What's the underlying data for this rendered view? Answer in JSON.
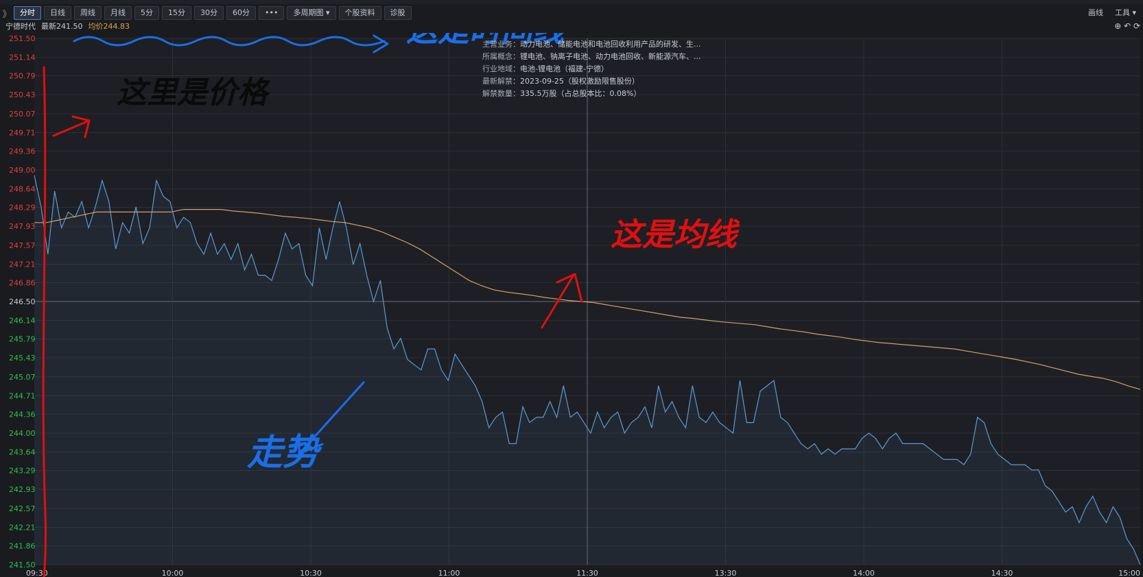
{
  "toolbar": {
    "collapse": "》",
    "tabs": [
      "分时",
      "日线",
      "周线",
      "月线",
      "5分",
      "15分",
      "30分",
      "60分",
      "•••",
      "多周期图 ▾",
      "个股资料",
      "诊股"
    ],
    "active_index": 0,
    "draw_label": "画线",
    "tools_label": "工具 ▾"
  },
  "infobar": {
    "name": "宁德时代",
    "last": "最新241.50",
    "avg": "均价244.83",
    "icons": "⊕ ↶ ⟳"
  },
  "info_panel": [
    {
      "k": "主营业务：",
      "v": "动力电池、储能电池和电池回收利用产品的研发、生..."
    },
    {
      "k": "所属概念：",
      "v": "锂电池、钠离子电池、动力电池回收、新能源汽车、..."
    },
    {
      "k": "行业地域：",
      "v": "电池-锂电池（福建-宁德）"
    },
    {
      "k": "最新解禁：",
      "v": "2023-09-25（股权激励限售股份）"
    },
    {
      "k": "解禁数量：",
      "v": "335.5万股（占总股本比：0.08%）"
    }
  ],
  "annotations": {
    "price": "这里是价格",
    "time": "这是时间线",
    "avg": "这是均线",
    "trend": "走势"
  },
  "colors": {
    "price_line": "#5b9bd5",
    "avg_line": "#d9a066",
    "up": "#e04040",
    "down": "#30c050",
    "red_ink": "#e01010",
    "blue_ink": "#1a6ee8",
    "black_ink": "#0a0a0a"
  },
  "chart_data": {
    "type": "line",
    "prev_close": 246.5,
    "ylim": [
      241.5,
      251.5
    ],
    "yticks": [
      "251.50",
      "251.14",
      "250.79",
      "250.43",
      "250.07",
      "249.71",
      "249.36",
      "249.00",
      "248.64",
      "248.29",
      "247.93",
      "247.57",
      "247.21",
      "246.86",
      "246.50",
      "246.14",
      "245.79",
      "245.43",
      "245.07",
      "244.71",
      "244.36",
      "244.00",
      "243.64",
      "243.29",
      "242.93",
      "242.57",
      "242.21",
      "241.86",
      "241.50"
    ],
    "xticks": [
      "09:30",
      "10:00",
      "10:30",
      "11:00",
      "11:30",
      "13:30",
      "14:00",
      "14:30",
      "15:00"
    ],
    "series": [
      {
        "name": "最新",
        "values": [
          248.9,
          248.3,
          247.4,
          248.6,
          247.9,
          248.2,
          248.1,
          248.4,
          247.9,
          248.3,
          248.8,
          248.4,
          247.5,
          248.0,
          247.8,
          248.3,
          247.6,
          247.9,
          248.8,
          248.5,
          248.4,
          247.9,
          248.1,
          248.0,
          247.6,
          247.4,
          247.8,
          247.4,
          247.6,
          247.3,
          247.6,
          247.1,
          247.4,
          247.0,
          247.0,
          246.9,
          247.3,
          247.8,
          247.5,
          247.6,
          247.0,
          246.8,
          247.9,
          247.3,
          247.9,
          248.4,
          247.9,
          247.2,
          247.6,
          247.0,
          246.5,
          246.9,
          246.0,
          245.6,
          245.8,
          245.4,
          245.3,
          245.2,
          245.6,
          245.6,
          245.2,
          245.0,
          245.5,
          245.3,
          245.1,
          244.9,
          244.6,
          244.1,
          244.3,
          244.4,
          243.8,
          243.8,
          244.5,
          244.2,
          244.3,
          244.3,
          244.6,
          244.3,
          244.9,
          244.3,
          244.4,
          244.2,
          244.0,
          244.4,
          244.1,
          244.3,
          244.4,
          244.0,
          244.2,
          244.3,
          244.5,
          244.1,
          244.9,
          244.4,
          244.6,
          244.3,
          244.1,
          244.9,
          244.3,
          244.2,
          244.4,
          244.2,
          244.1,
          244.0,
          245.0,
          244.2,
          244.2,
          244.8,
          244.9,
          245.0,
          244.3,
          244.2,
          244.0,
          243.8,
          243.7,
          243.8,
          243.6,
          243.7,
          243.6,
          243.7,
          243.7,
          243.7,
          243.9,
          244.0,
          243.9,
          243.7,
          243.9,
          244.0,
          243.8,
          243.8,
          243.8,
          243.8,
          243.7,
          243.6,
          243.5,
          243.5,
          243.5,
          243.4,
          243.6,
          244.3,
          244.2,
          243.8,
          243.6,
          243.5,
          243.4,
          243.4,
          243.4,
          243.3,
          243.3,
          243.0,
          242.9,
          242.7,
          242.5,
          242.6,
          242.3,
          242.6,
          242.8,
          242.5,
          242.3,
          242.6,
          242.4,
          242.0,
          241.8,
          241.5
        ]
      },
      {
        "name": "均价",
        "values": [
          248.0,
          248.0,
          248.05,
          248.1,
          248.15,
          248.2,
          248.2,
          248.2,
          248.2,
          248.2,
          248.2,
          248.2,
          248.25,
          248.25,
          248.25,
          248.25,
          248.22,
          248.2,
          248.18,
          248.15,
          248.12,
          248.1,
          248.08,
          248.05,
          248.02,
          248.0,
          247.95,
          247.9,
          247.82,
          247.72,
          247.62,
          247.5,
          247.35,
          247.2,
          247.05,
          246.9,
          246.8,
          246.72,
          246.68,
          246.65,
          246.62,
          246.58,
          246.55,
          246.52,
          246.5,
          246.48,
          246.44,
          246.4,
          246.36,
          246.32,
          246.28,
          246.24,
          246.2,
          246.18,
          246.15,
          246.12,
          246.1,
          246.08,
          246.06,
          246.02,
          245.98,
          245.95,
          245.92,
          245.88,
          245.85,
          245.82,
          245.78,
          245.75,
          245.72,
          245.7,
          245.68,
          245.66,
          245.64,
          245.62,
          245.6,
          245.56,
          245.52,
          245.48,
          245.44,
          245.4,
          245.35,
          245.3,
          245.24,
          245.18,
          245.12,
          245.08,
          245.04,
          244.98,
          244.9,
          244.83
        ]
      }
    ],
    "grid": true
  }
}
